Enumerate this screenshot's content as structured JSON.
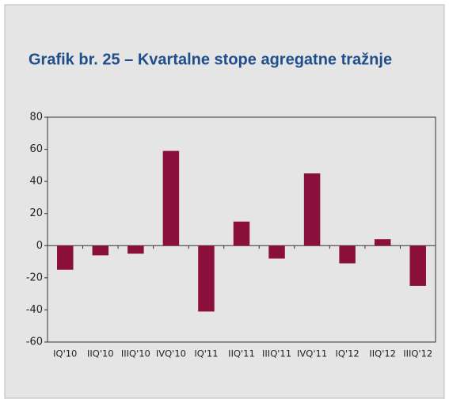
{
  "chart_data": {
    "type": "bar",
    "title": "Grafik br. 25 – Kvartalne stope agregatne tražnje",
    "categories": [
      "IQ'10",
      "IIQ'10",
      "IIIQ'10",
      "IVQ'10",
      "IQ'11",
      "IIQ'11",
      "IIIQ'11",
      "IVQ'11",
      "IQ'12",
      "IIQ'12",
      "IIIQ'12"
    ],
    "values": [
      -15,
      -6,
      -5,
      59,
      -41,
      15,
      -8,
      45,
      -11,
      4,
      -25
    ],
    "color": "#8b0f3b",
    "ylim": [
      -60,
      80
    ],
    "yticks": [
      -60,
      -40,
      -20,
      0,
      20,
      40,
      60,
      80
    ],
    "grid": false
  }
}
